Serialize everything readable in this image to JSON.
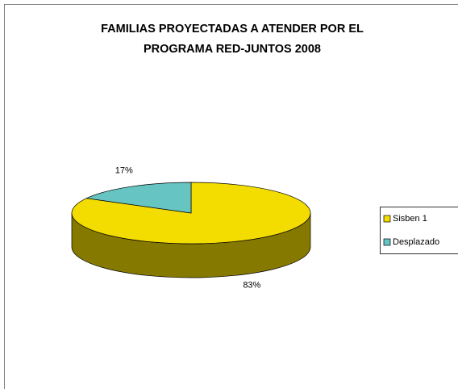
{
  "chart_data": {
    "type": "pie3d",
    "title": [
      "FAMILIAS PROYECTADAS A ATENDER POR EL",
      "PROGRAMA RED-JUNTOS 2008"
    ],
    "series": [
      {
        "name": "Sisben 1",
        "color": "#f3dc00"
      },
      {
        "name": "Desplazado",
        "color": "#66c4c2"
      }
    ],
    "values": [
      83,
      17
    ],
    "value_labels": [
      "83%",
      "17%"
    ],
    "legend": "right"
  }
}
